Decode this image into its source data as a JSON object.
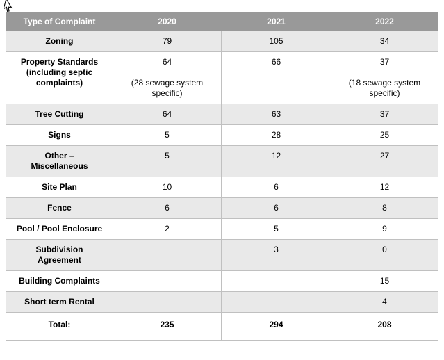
{
  "colors": {
    "header_bg": "#999999",
    "header_text": "#ffffff",
    "row_shaded": "#e9e9e9",
    "row_white": "#ffffff",
    "border": "#c0c0c0",
    "text": "#000000"
  },
  "cursor": {
    "icon": "arrow-pointer"
  },
  "table": {
    "columns": [
      "Type of Complaint",
      "2020",
      "2021",
      "2022"
    ],
    "rows": [
      {
        "label": "Zoning",
        "shaded": true,
        "values": [
          "79",
          "105",
          "34"
        ]
      },
      {
        "label": "Property Standards\n(including septic\ncomplaints)",
        "shaded": false,
        "values": [
          "64\n\n(28 sewage system\nspecific)",
          "66",
          "37\n\n(18 sewage system\nspecific)"
        ]
      },
      {
        "label": "Tree Cutting",
        "shaded": true,
        "values": [
          "64",
          "63",
          "37"
        ]
      },
      {
        "label": "Signs",
        "shaded": false,
        "values": [
          "5",
          "28",
          "25"
        ]
      },
      {
        "label": "Other –\nMiscellaneous",
        "shaded": true,
        "values": [
          "5",
          "12",
          "27"
        ]
      },
      {
        "label": "Site Plan",
        "shaded": false,
        "values": [
          "10",
          "6",
          "12"
        ]
      },
      {
        "label": "Fence",
        "shaded": true,
        "values": [
          "6",
          "6",
          "8"
        ]
      },
      {
        "label": "Pool / Pool Enclosure",
        "shaded": false,
        "values": [
          "2",
          "5",
          "9"
        ]
      },
      {
        "label": "Subdivision\nAgreement",
        "shaded": true,
        "values": [
          "",
          "3",
          "0"
        ]
      },
      {
        "label": "Building Complaints",
        "shaded": false,
        "values": [
          "",
          "",
          "15"
        ]
      },
      {
        "label": "Short term Rental",
        "shaded": true,
        "values": [
          "",
          "",
          "4"
        ]
      },
      {
        "label": "Total:",
        "shaded": false,
        "total": true,
        "values": [
          "235",
          "294",
          "208"
        ]
      }
    ]
  }
}
